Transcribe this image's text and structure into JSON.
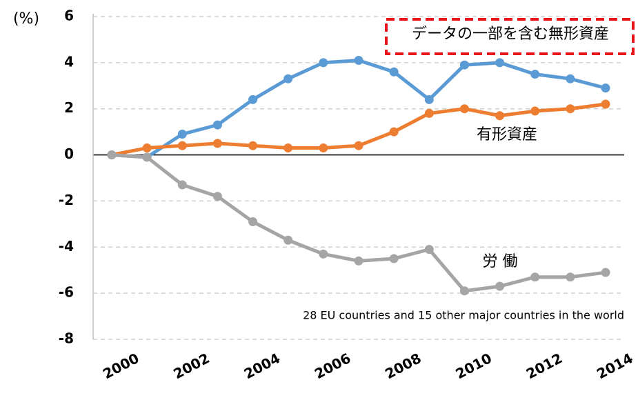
{
  "chart_data": {
    "type": "line",
    "y_label": "(%)",
    "annotation": "28 EU countries and 15 other major countries in the world",
    "x": [
      2000,
      2001,
      2002,
      2003,
      2004,
      2005,
      2006,
      2007,
      2008,
      2009,
      2010,
      2011,
      2012,
      2013,
      2014
    ],
    "xlim": [
      2000,
      2014
    ],
    "xticks": [
      2000,
      2002,
      2004,
      2006,
      2008,
      2010,
      2012,
      2014
    ],
    "ylim": [
      -8,
      6
    ],
    "yticks": [
      -8,
      -6,
      -4,
      -2,
      0,
      2,
      4,
      6
    ],
    "grid": true,
    "series": [
      {
        "name": "データの一部を含む無形資産",
        "color": "#5b9bd5",
        "values": [
          0,
          -0.1,
          0.9,
          1.3,
          2.4,
          3.3,
          4.0,
          4.1,
          3.6,
          2.4,
          3.9,
          4.0,
          3.5,
          3.3,
          2.9
        ]
      },
      {
        "name": "有形資産",
        "color": "#ed7d31",
        "values": [
          0,
          0.3,
          0.4,
          0.5,
          0.4,
          0.3,
          0.3,
          0.4,
          1.0,
          1.8,
          2.0,
          1.7,
          1.9,
          2.0,
          2.2
        ]
      },
      {
        "name": "労 働",
        "color": "#a5a5a5",
        "values": [
          0,
          -0.1,
          -1.3,
          -1.8,
          -2.9,
          -3.7,
          -4.3,
          -4.6,
          -4.5,
          -4.1,
          -5.9,
          -5.7,
          -5.3,
          -5.3,
          -5.1
        ]
      }
    ]
  }
}
